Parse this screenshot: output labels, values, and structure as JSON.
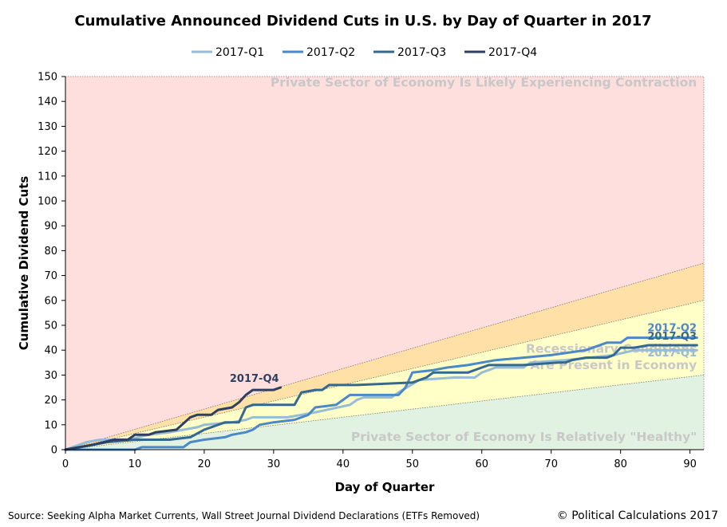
{
  "chart_data": {
    "type": "line",
    "title": "Cumulative Announced Dividend Cuts in U.S. by Day of Quarter in 2017",
    "xlabel": "Day of Quarter",
    "ylabel": "Cumulative Dividend Cuts",
    "xlim": [
      0,
      92
    ],
    "ylim": [
      0,
      150
    ],
    "x_ticks": [
      0,
      10,
      20,
      30,
      40,
      50,
      60,
      70,
      80,
      90
    ],
    "y_ticks": [
      0,
      10,
      20,
      30,
      40,
      50,
      60,
      70,
      80,
      90,
      100,
      110,
      120,
      130,
      140,
      150
    ],
    "legend_position": "top",
    "grid": false,
    "zones": [
      {
        "name": "contraction",
        "label": "Private Sector of Economy Is Likely Experiencing Contraction",
        "color": "#ffdede",
        "x_end": 92,
        "y_upper_at_end": 150
      },
      {
        "name": "upper-transition",
        "color": "#ffe0a6",
        "x_end": 92,
        "y_upper_at_end": 75
      },
      {
        "name": "recession",
        "label_lines": [
          "Recessionary Conditions",
          "Are Present in Economy"
        ],
        "color": "#ffffc8",
        "x_end": 92,
        "y_upper_at_end": 60
      },
      {
        "name": "healthy",
        "label": "Private Sector of Economy Is Relatively \"Healthy\"",
        "color": "#e2f2e2",
        "x_end": 92,
        "y_upper_at_end": 30
      }
    ],
    "series": [
      {
        "name": "2017-Q1",
        "color": "#96bcd6",
        "end_label": "2017-Q1",
        "points": [
          [
            0,
            0
          ],
          [
            3,
            3
          ],
          [
            5,
            4
          ],
          [
            9,
            4
          ],
          [
            12,
            6
          ],
          [
            15,
            7
          ],
          [
            17,
            8
          ],
          [
            19,
            9
          ],
          [
            20,
            10
          ],
          [
            24,
            11
          ],
          [
            26,
            12
          ],
          [
            27,
            13
          ],
          [
            32,
            13
          ],
          [
            34,
            14
          ],
          [
            36,
            15
          ],
          [
            41,
            18
          ],
          [
            42,
            20
          ],
          [
            43,
            21
          ],
          [
            47,
            21
          ],
          [
            48,
            23
          ],
          [
            51,
            28
          ],
          [
            56,
            29
          ],
          [
            59,
            29
          ],
          [
            60,
            31
          ],
          [
            62,
            33
          ],
          [
            66,
            33
          ],
          [
            67,
            35
          ],
          [
            72,
            36
          ],
          [
            79,
            38
          ],
          [
            82,
            40
          ],
          [
            91,
            40
          ]
        ]
      },
      {
        "name": "2017-Q2",
        "color": "#4a88c8",
        "end_label": "2017-Q2",
        "points": [
          [
            0,
            0
          ],
          [
            10,
            0
          ],
          [
            11,
            1
          ],
          [
            17,
            1
          ],
          [
            18,
            3
          ],
          [
            20,
            4
          ],
          [
            23,
            5
          ],
          [
            24,
            6
          ],
          [
            26,
            7
          ],
          [
            27,
            8
          ],
          [
            28,
            10
          ],
          [
            30,
            11
          ],
          [
            33,
            12
          ],
          [
            35,
            14
          ],
          [
            36,
            17
          ],
          [
            39,
            18
          ],
          [
            40,
            20
          ],
          [
            41,
            22
          ],
          [
            48,
            22
          ],
          [
            49,
            25
          ],
          [
            50,
            31
          ],
          [
            53,
            32
          ],
          [
            55,
            33
          ],
          [
            58,
            34
          ],
          [
            62,
            36
          ],
          [
            66,
            37
          ],
          [
            70,
            38
          ],
          [
            75,
            40
          ],
          [
            78,
            43
          ],
          [
            80,
            43
          ],
          [
            81,
            45
          ],
          [
            91,
            45
          ]
        ]
      },
      {
        "name": "2017-Q3",
        "color": "#35688f",
        "end_label": "2017-Q3",
        "points": [
          [
            0,
            0
          ],
          [
            2,
            1
          ],
          [
            4,
            2
          ],
          [
            6,
            3
          ],
          [
            10,
            4
          ],
          [
            15,
            4
          ],
          [
            18,
            5
          ],
          [
            20,
            8
          ],
          [
            21,
            9
          ],
          [
            23,
            11
          ],
          [
            25,
            11
          ],
          [
            26,
            17
          ],
          [
            27,
            18
          ],
          [
            33,
            18
          ],
          [
            34,
            23
          ],
          [
            36,
            24
          ],
          [
            37,
            24
          ],
          [
            38,
            26
          ],
          [
            42,
            26
          ],
          [
            50,
            27
          ],
          [
            51,
            28
          ],
          [
            52,
            29
          ],
          [
            53,
            31
          ],
          [
            58,
            31
          ],
          [
            60,
            33
          ],
          [
            61,
            34
          ],
          [
            66,
            34
          ],
          [
            71,
            35
          ],
          [
            72,
            35
          ],
          [
            73,
            36
          ],
          [
            75,
            37
          ],
          [
            78,
            37
          ],
          [
            79,
            38
          ],
          [
            80,
            41
          ],
          [
            82,
            41
          ],
          [
            84,
            42
          ],
          [
            91,
            42
          ]
        ]
      },
      {
        "name": "2017-Q4",
        "color": "#2e3f5f",
        "end_label": "2017-Q4",
        "points": [
          [
            0,
            0
          ],
          [
            4,
            2
          ],
          [
            7,
            4
          ],
          [
            9,
            4
          ],
          [
            10,
            6
          ],
          [
            12,
            6
          ],
          [
            13,
            7
          ],
          [
            16,
            8
          ],
          [
            18,
            13
          ],
          [
            19,
            14
          ],
          [
            21,
            14
          ],
          [
            22,
            16
          ],
          [
            24,
            17
          ],
          [
            25,
            19
          ],
          [
            26,
            22
          ],
          [
            27,
            24
          ],
          [
            30,
            24
          ],
          [
            31,
            25
          ]
        ]
      }
    ]
  },
  "footer": {
    "source": "Source: Seeking Alpha Market Currents, Wall Street Journal Dividend Declarations (ETFs Removed)",
    "copyright": "© Political Calculations 2017"
  }
}
